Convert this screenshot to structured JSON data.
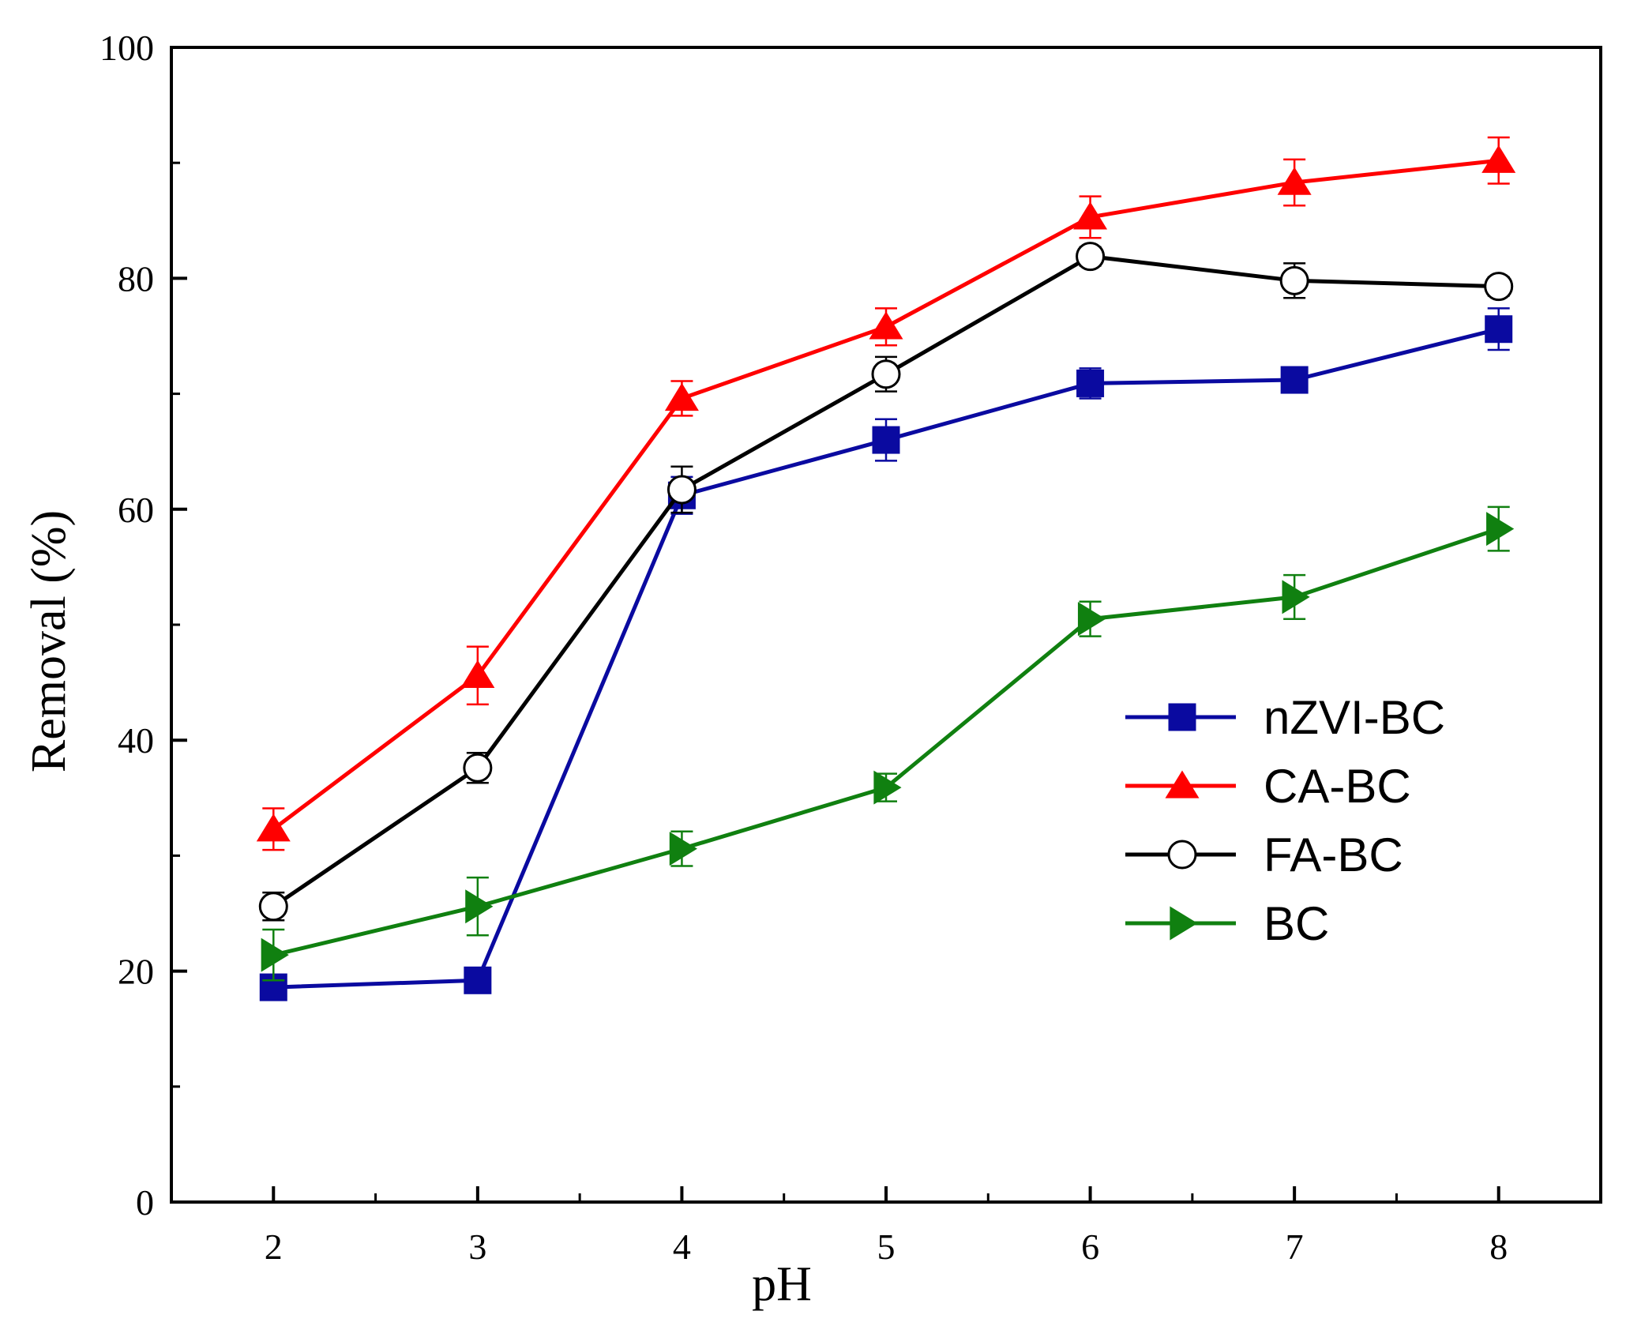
{
  "chart_data": {
    "type": "line",
    "title": "",
    "xlabel": "pH",
    "ylabel": "Removal (%)",
    "xlim": [
      1.5,
      8.5
    ],
    "ylim": [
      0,
      100
    ],
    "x": [
      2,
      3,
      4,
      5,
      6,
      7,
      8
    ],
    "xticks": [
      2,
      3,
      4,
      5,
      6,
      7,
      8
    ],
    "yticks": [
      0,
      20,
      40,
      60,
      80,
      100
    ],
    "legend_position": "middle-right",
    "grid": false,
    "series": [
      {
        "name": "nZVI-BC",
        "color": "#0a0aa0",
        "marker": "filled-square",
        "values": [
          18.6,
          19.2,
          61.2,
          66.0,
          70.9,
          71.2,
          75.6
        ],
        "errors": [
          1.0,
          1.0,
          1.6,
          1.8,
          1.3,
          0.8,
          1.8
        ]
      },
      {
        "name": "CA-BC",
        "color": "#ff0000",
        "marker": "filled-triangle-up",
        "values": [
          32.3,
          45.6,
          69.6,
          75.8,
          85.3,
          88.3,
          90.2
        ],
        "errors": [
          1.8,
          2.5,
          1.5,
          1.6,
          1.8,
          2.0,
          2.0
        ]
      },
      {
        "name": "FA-BC",
        "color": "#000000",
        "marker": "open-circle",
        "values": [
          25.6,
          37.6,
          61.7,
          71.7,
          81.9,
          79.8,
          79.3
        ],
        "errors": [
          1.2,
          1.3,
          2.0,
          1.5,
          0.8,
          1.5,
          0.8
        ]
      },
      {
        "name": "BC",
        "color": "#108010",
        "marker": "filled-triangle-right",
        "values": [
          21.4,
          25.6,
          30.6,
          35.9,
          50.5,
          52.4,
          58.3
        ],
        "errors": [
          2.2,
          2.5,
          1.5,
          1.2,
          1.5,
          1.9,
          1.9
        ]
      }
    ]
  }
}
